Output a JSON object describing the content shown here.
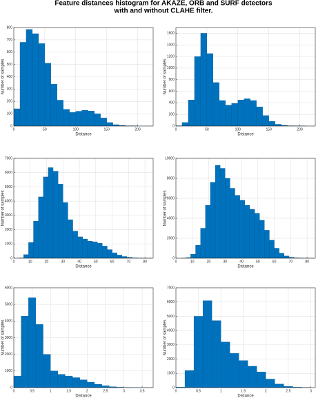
{
  "title": [
    "Feature distances histogram for AKAZE, ORB and SURF detectors",
    "with and without CLAHE filter."
  ],
  "chart_data": [
    {
      "type": "histogram",
      "xlabel": "Distance",
      "ylabel": "Number of samples",
      "color": "#0072bd",
      "grid": true,
      "bins": [
        0,
        10,
        20,
        30,
        40,
        50,
        60,
        70,
        80,
        90,
        100,
        110,
        120,
        130,
        140,
        150,
        160,
        170,
        180,
        190,
        200,
        210,
        220
      ],
      "counts": [
        140,
        680,
        785,
        750,
        670,
        510,
        340,
        210,
        135,
        110,
        120,
        128,
        122,
        100,
        65,
        28,
        11,
        5,
        2,
        1,
        0,
        0
      ],
      "xlim": [
        0,
        225
      ],
      "xticks": [
        0,
        50,
        100,
        150,
        200
      ],
      "ylim": [
        0,
        800
      ],
      "yticks": [
        0,
        100,
        200,
        300,
        400,
        500,
        600,
        700,
        800
      ]
    },
    {
      "type": "histogram",
      "xlabel": "Distance",
      "ylabel": "Number of samples",
      "color": "#0072bd",
      "grid": true,
      "bins": [
        0,
        10,
        20,
        30,
        40,
        50,
        60,
        70,
        80,
        90,
        100,
        110,
        120,
        130,
        140,
        150,
        160,
        170,
        180,
        190,
        200,
        210,
        220
      ],
      "counts": [
        5,
        60,
        450,
        1200,
        1600,
        1250,
        750,
        440,
        360,
        390,
        450,
        470,
        440,
        330,
        180,
        80,
        30,
        12,
        5,
        2,
        1,
        0
      ],
      "xlim": [
        0,
        225
      ],
      "xticks": [
        0,
        50,
        100,
        150,
        200
      ],
      "ylim": [
        0,
        1700
      ],
      "yticks": [
        0,
        200,
        400,
        600,
        800,
        1000,
        1200,
        1400,
        1600
      ]
    },
    {
      "type": "histogram",
      "xlabel": "Distance",
      "ylabel": "Number of samples",
      "color": "#0072bd",
      "grid": true,
      "bins": [
        0,
        3,
        6,
        9,
        12,
        15,
        18,
        21,
        24,
        27,
        30,
        33,
        36,
        39,
        42,
        45,
        48,
        51,
        54,
        57,
        60,
        63,
        66,
        69,
        72,
        75,
        78,
        81,
        84
      ],
      "counts": [
        0,
        20,
        250,
        1100,
        2600,
        4300,
        5700,
        6350,
        6100,
        5200,
        3900,
        2700,
        1900,
        1500,
        1350,
        1200,
        1150,
        1050,
        850,
        600,
        380,
        220,
        120,
        60,
        25,
        10,
        3,
        1
      ],
      "xlim": [
        0,
        85
      ],
      "xticks": [
        0,
        10,
        20,
        30,
        40,
        50,
        60,
        70,
        80
      ],
      "ylim": [
        0,
        7000
      ],
      "yticks": [
        0,
        1000,
        2000,
        3000,
        4000,
        5000,
        6000,
        7000
      ]
    },
    {
      "type": "histogram",
      "xlabel": "Distance",
      "ylabel": "Number of samples",
      "color": "#0072bd",
      "grid": true,
      "bins": [
        0,
        3,
        6,
        9,
        12,
        15,
        18,
        21,
        24,
        27,
        30,
        33,
        36,
        39,
        42,
        45,
        48,
        51,
        54,
        57,
        60,
        63,
        66,
        69,
        72,
        75,
        78,
        81,
        84
      ],
      "counts": [
        0,
        5,
        60,
        400,
        1300,
        3000,
        5300,
        7600,
        9300,
        9000,
        8000,
        7000,
        6300,
        5800,
        5300,
        4900,
        4500,
        3800,
        2800,
        1800,
        1000,
        500,
        220,
        90,
        35,
        12,
        4,
        1
      ],
      "xlim": [
        0,
        85
      ],
      "xticks": [
        0,
        10,
        20,
        30,
        40,
        50,
        60,
        70,
        80
      ],
      "ylim": [
        0,
        10000
      ],
      "yticks": [
        0,
        2000,
        4000,
        6000,
        8000,
        10000
      ]
    },
    {
      "type": "histogram",
      "xlabel": "Distance",
      "ylabel": "Number of samples",
      "color": "#0072bd",
      "grid": true,
      "bins": [
        0,
        0.2,
        0.4,
        0.6,
        0.8,
        1.0,
        1.2,
        1.4,
        1.6,
        1.8,
        2.0,
        2.2,
        2.4,
        2.6,
        2.8,
        3.0,
        3.2,
        3.4,
        3.6,
        3.8
      ],
      "counts": [
        700,
        4300,
        5400,
        3800,
        2000,
        1000,
        800,
        700,
        600,
        470,
        330,
        200,
        110,
        55,
        25,
        10,
        4,
        2,
        1
      ],
      "xlim": [
        0,
        3.8
      ],
      "xticks": [
        0,
        0.5,
        1,
        1.5,
        2,
        2.5,
        3,
        3.5
      ],
      "ylim": [
        0,
        6000
      ],
      "yticks": [
        0,
        1000,
        2000,
        3000,
        4000,
        5000,
        6000
      ]
    },
    {
      "type": "histogram",
      "xlabel": "Distance",
      "ylabel": "Number of samples",
      "color": "#0072bd",
      "grid": true,
      "bins": [
        0,
        0.2,
        0.4,
        0.6,
        0.8,
        1.0,
        1.2,
        1.4,
        1.6,
        1.8,
        2.0,
        2.2,
        2.4,
        2.6,
        2.8,
        3.0
      ],
      "counts": [
        40,
        1200,
        5000,
        6100,
        4700,
        3200,
        2400,
        1900,
        1500,
        1100,
        600,
        250,
        90,
        30,
        8
      ],
      "xlim": [
        0,
        3.1
      ],
      "xticks": [
        0,
        0.5,
        1,
        1.5,
        2,
        2.5,
        3
      ],
      "ylim": [
        0,
        7000
      ],
      "yticks": [
        0,
        1000,
        2000,
        3000,
        4000,
        5000,
        6000,
        7000
      ]
    }
  ]
}
